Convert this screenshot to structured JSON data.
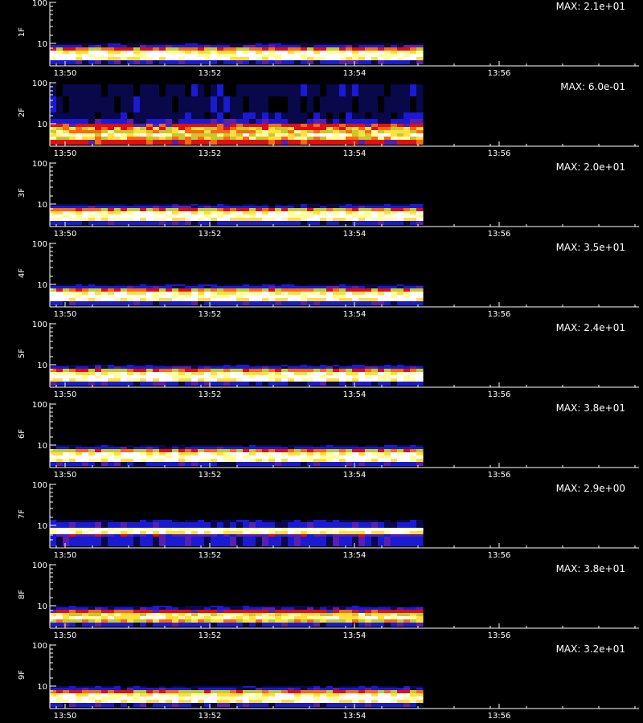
{
  "chart_data": [
    {
      "type": "heatmap",
      "ylabel": "1F",
      "max_text": "MAX: 2.1e+01",
      "x_ticks": [
        "13:50",
        "13:52",
        "13:54",
        "13:56"
      ],
      "y_ticks": [
        "100",
        "10"
      ],
      "profile": "flat"
    },
    {
      "type": "heatmap",
      "ylabel": "2F",
      "max_text": "MAX: 6.0e-01",
      "x_ticks": [
        "13:50",
        "13:52",
        "13:54",
        "13:56"
      ],
      "y_ticks": [
        "100",
        "10"
      ],
      "profile": "noisy"
    },
    {
      "type": "heatmap",
      "ylabel": "3F",
      "max_text": "MAX: 2.0e+01",
      "x_ticks": [
        "13:50",
        "13:52",
        "13:54",
        "13:56"
      ],
      "y_ticks": [
        "100",
        "10"
      ],
      "profile": "flat"
    },
    {
      "type": "heatmap",
      "ylabel": "4F",
      "max_text": "MAX: 3.5e+01",
      "x_ticks": [
        "13:50",
        "13:52",
        "13:54",
        "13:56"
      ],
      "y_ticks": [
        "100",
        "10"
      ],
      "profile": "flat"
    },
    {
      "type": "heatmap",
      "ylabel": "5F",
      "max_text": "MAX: 2.4e+01",
      "x_ticks": [
        "13:50",
        "13:52",
        "13:54",
        "13:56"
      ],
      "y_ticks": [
        "100",
        "10"
      ],
      "profile": "flat"
    },
    {
      "type": "heatmap",
      "ylabel": "6F",
      "max_text": "MAX: 3.8e+01",
      "x_ticks": [
        "13:50",
        "13:52",
        "13:54",
        "13:56"
      ],
      "y_ticks": [
        "100",
        "10"
      ],
      "profile": "flat"
    },
    {
      "type": "heatmap",
      "ylabel": "7F",
      "max_text": "MAX: 2.9e+00",
      "x_ticks": [
        "13:50",
        "13:52",
        "13:54",
        "13:56"
      ],
      "y_ticks": [
        "100",
        "10"
      ],
      "profile": "wide"
    },
    {
      "type": "heatmap",
      "ylabel": "8F",
      "max_text": "MAX: 3.8e+01",
      "x_ticks": [
        "13:50",
        "13:52",
        "13:54",
        "13:56"
      ],
      "y_ticks": [
        "100",
        "10"
      ],
      "profile": "warm"
    },
    {
      "type": "heatmap",
      "ylabel": "9F",
      "max_text": "MAX: 3.2e+01",
      "x_ticks": [
        "13:50",
        "13:52",
        "13:54",
        "13:56"
      ],
      "y_ticks": [
        "100",
        "10"
      ],
      "profile": "flat"
    }
  ],
  "colors": {
    "background": "#000000",
    "axis": "#ffffff",
    "colormap": [
      "#000000",
      "#08084a",
      "#1a1ad2",
      "#5a1fb0",
      "#e01010",
      "#ff6a10",
      "#c8c830",
      "#ffe040",
      "#ffffa0",
      "#ffffff"
    ]
  }
}
